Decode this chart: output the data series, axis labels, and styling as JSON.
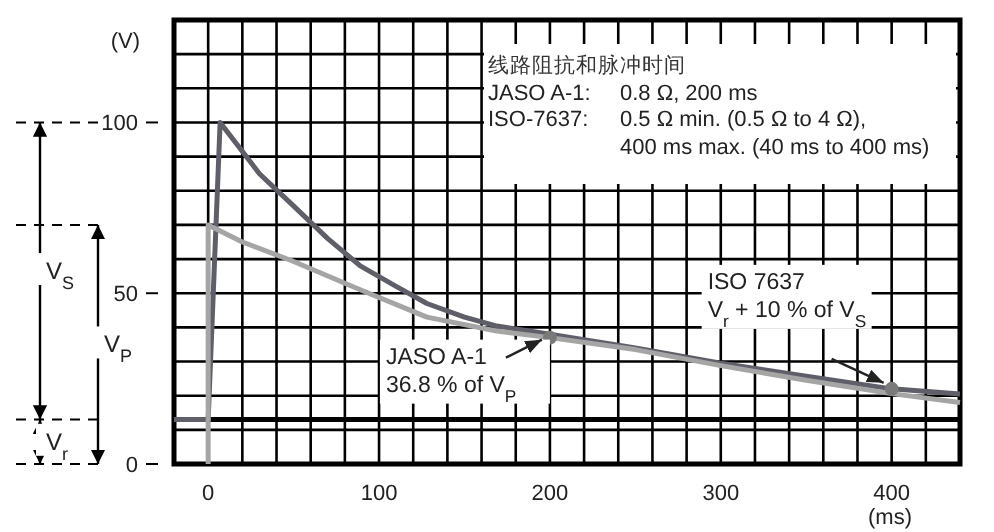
{
  "chart_data": {
    "type": "line",
    "xlabel": "(ms)",
    "ylabel": "(V)",
    "xlim": [
      -20,
      440
    ],
    "ylim": [
      0,
      130
    ],
    "xticks": [
      {
        "value": -20,
        "label": null
      },
      {
        "value": 0,
        "label": "0"
      },
      {
        "value": 20,
        "label": null
      },
      {
        "value": 40,
        "label": null
      },
      {
        "value": 60,
        "label": null
      },
      {
        "value": 80,
        "label": null
      },
      {
        "value": 100,
        "label": "100"
      },
      {
        "value": 120,
        "label": null
      },
      {
        "value": 140,
        "label": null
      },
      {
        "value": 160,
        "label": null
      },
      {
        "value": 180,
        "label": null
      },
      {
        "value": 200,
        "label": "200"
      },
      {
        "value": 220,
        "label": null
      },
      {
        "value": 240,
        "label": null
      },
      {
        "value": 260,
        "label": null
      },
      {
        "value": 280,
        "label": null
      },
      {
        "value": 300,
        "label": "300"
      },
      {
        "value": 320,
        "label": null
      },
      {
        "value": 340,
        "label": null
      },
      {
        "value": 360,
        "label": null
      },
      {
        "value": 380,
        "label": null
      },
      {
        "value": 400,
        "label": "400"
      },
      {
        "value": 420,
        "label": null
      }
    ],
    "yticks": [
      {
        "value": 0,
        "label": "0"
      },
      {
        "value": 10,
        "label": null
      },
      {
        "value": 20,
        "label": null
      },
      {
        "value": 30,
        "label": null
      },
      {
        "value": 40,
        "label": null
      },
      {
        "value": 50,
        "label": "50"
      },
      {
        "value": 60,
        "label": null
      },
      {
        "value": 70,
        "label": null
      },
      {
        "value": 80,
        "label": null
      },
      {
        "value": 90,
        "label": null
      },
      {
        "value": 100,
        "label": "100"
      },
      {
        "value": 110,
        "label": null
      },
      {
        "value": 120,
        "label": null
      }
    ],
    "grid": true,
    "series": [
      {
        "color": "#5f5f6a",
        "x": [
          -20,
          0,
          7,
          30,
          49,
          70,
          89,
          110,
          128,
          150,
          168,
          200,
          250,
          300,
          350,
          400,
          440
        ],
        "values": [
          13,
          13,
          100,
          85,
          76,
          66,
          58,
          52,
          47,
          43,
          40.5,
          38,
          34,
          29.5,
          25.7,
          22,
          20.5
        ]
      },
      {
        "color": "#a5a5a5",
        "x": [
          0,
          0,
          20,
          49,
          89,
          128,
          168,
          200,
          250,
          300,
          350,
          400,
          440
        ],
        "values": [
          0,
          70,
          65,
          59.5,
          51,
          43,
          39,
          37,
          33.5,
          28.8,
          24.5,
          20.6,
          18
        ]
      },
      {
        "type": "scatter",
        "color": "#7a7a7a",
        "x": [
          200,
          400
        ],
        "values": [
          37,
          22
        ]
      }
    ],
    "ref_lines": [
      {
        "axis": "y",
        "value": 13,
        "color": "#000000"
      }
    ],
    "annotations": [
      "线路阻抗和脉冲时间",
      "JASO A-1:",
      "0.8 Ω, 200 ms",
      "ISO-7637:",
      "0.5 Ω min. (0.5 Ω to 4 Ω),",
      "400  ms max. (40 ms to 400 ms)",
      "V$_{S}$",
      "V$_{P}$",
      "V$_{r}$",
      {
        "text": "JASO A-1\n36.8 % of V$_{P}$",
        "x": 200,
        "y": 37
      },
      {
        "text": "ISO 7637\nV$_{r}$ + 10 % of V$_{S}$",
        "x": 400,
        "y": 22
      }
    ]
  }
}
